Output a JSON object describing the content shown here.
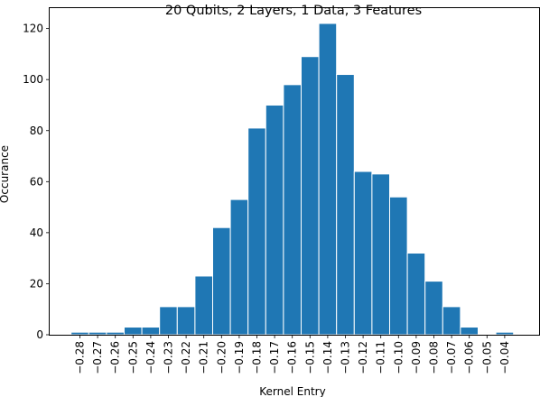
{
  "chart_data": {
    "type": "bar",
    "title": "20 Qubits, 2 Layers, 1 Data, 3 Features",
    "xlabel": "Kernel Entry",
    "ylabel": "Occurance",
    "categories": [
      "-0.28",
      "-0.27",
      "-0.26",
      "-0.25",
      "-0.24",
      "-0.23",
      "-0.22",
      "-0.21",
      "-0.20",
      "-0.19",
      "-0.18",
      "-0.17",
      "-0.16",
      "-0.15",
      "-0.14",
      "-0.13",
      "-0.12",
      "-0.11",
      "-0.10",
      "-0.09",
      "-0.08",
      "-0.07",
      "-0.06",
      "-0.05",
      "-0.04"
    ],
    "tick_labels": [
      "−0.28",
      "−0.27",
      "−0.26",
      "−0.25",
      "−0.24",
      "−0.23",
      "−0.22",
      "−0.21",
      "−0.20",
      "−0.19",
      "−0.18",
      "−0.17",
      "−0.16",
      "−0.15",
      "−0.14",
      "−0.13",
      "−0.12",
      "−0.11",
      "−0.10",
      "−0.09",
      "−0.08",
      "−0.07",
      "−0.06",
      "−0.05",
      "−0.04"
    ],
    "values": [
      1,
      1,
      1,
      3,
      3,
      11,
      11,
      23,
      42,
      53,
      81,
      90,
      98,
      109,
      122,
      102,
      64,
      63,
      54,
      32,
      21,
      11,
      3,
      0,
      1
    ],
    "ylim": [
      0,
      128
    ],
    "yticks": [
      0,
      20,
      40,
      60,
      80,
      100,
      120
    ],
    "grid": false,
    "bar_color": "#1f77b4",
    "bar_edge_color": "#ffffff"
  }
}
